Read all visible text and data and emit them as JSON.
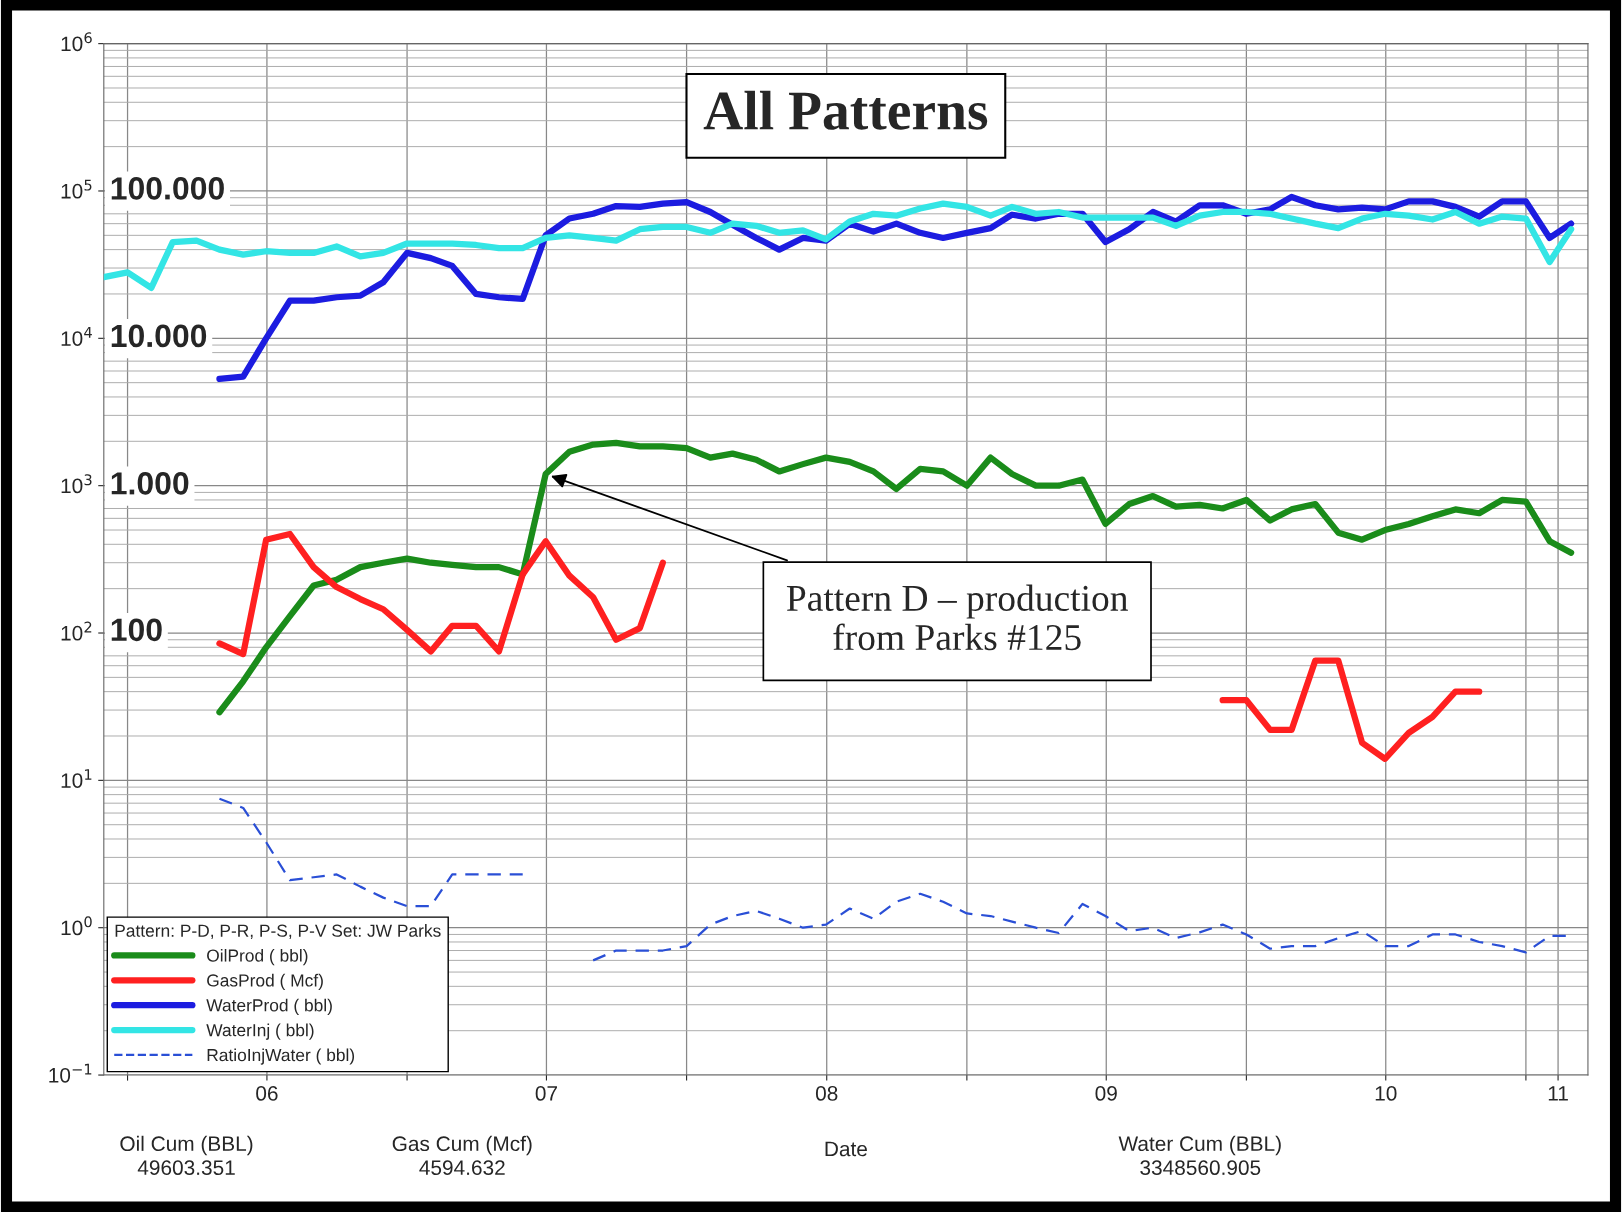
{
  "chart_data": {
    "type": "line",
    "title": "All Patterns",
    "xlabel": "Date",
    "legend_title": "Pattern: P-D, P-R, P-S, P-V Set: JW Parks",
    "x": [
      "2005-12",
      "2006-01",
      "2006-02",
      "2006-03",
      "2006-04",
      "2006-05",
      "2006-06",
      "2006-07",
      "2006-08",
      "2006-09",
      "2006-10",
      "2006-11",
      "2006-12",
      "2007-01",
      "2007-02",
      "2007-03",
      "2007-04",
      "2007-05",
      "2007-06",
      "2007-07",
      "2007-08",
      "2007-09",
      "2007-10",
      "2007-11",
      "2007-12",
      "2008-01",
      "2008-02",
      "2008-03",
      "2008-04",
      "2008-05",
      "2008-06",
      "2008-07",
      "2008-08",
      "2008-09",
      "2008-10",
      "2008-11",
      "2008-12",
      "2009-01",
      "2009-02",
      "2009-03",
      "2009-04",
      "2009-05",
      "2009-06",
      "2009-07",
      "2009-08",
      "2009-09",
      "2009-10",
      "2009-11",
      "2009-12",
      "2010-01",
      "2010-02",
      "2010-03",
      "2010-04",
      "2010-05",
      "2010-06",
      "2010-07",
      "2010-08",
      "2010-09",
      "2010-10",
      "2010-11",
      "2010-12",
      "2011-01",
      "2011-02",
      "2011-03"
    ],
    "series": [
      {
        "name": "OilProd ( bbl)",
        "color": "#1a8c1a",
        "line_style": "solid",
        "values": [
          null,
          null,
          null,
          null,
          null,
          29,
          47,
          80,
          130,
          210,
          230,
          280,
          300,
          320,
          300,
          290,
          280,
          280,
          250,
          1200,
          1700,
          1900,
          1950,
          1850,
          1850,
          1800,
          1550,
          1650,
          1500,
          1250,
          1400,
          1550,
          1450,
          1250,
          950,
          1300,
          1250,
          1000,
          1550,
          1200,
          1000,
          1000,
          1100,
          550,
          750,
          850,
          720,
          740,
          700,
          800,
          580,
          690,
          750,
          480,
          430,
          500,
          550,
          620,
          690,
          650,
          800,
          780,
          420,
          350
        ]
      },
      {
        "name": "GasProd ( Mcf)",
        "color": "#ff2020",
        "line_style": "solid",
        "values": [
          null,
          null,
          null,
          null,
          null,
          85,
          72,
          430,
          470,
          280,
          205,
          170,
          145,
          105,
          75,
          112,
          112,
          75,
          250,
          420,
          245,
          175,
          90,
          108,
          300,
          null,
          null,
          null,
          null,
          null,
          null,
          null,
          null,
          null,
          null,
          null,
          null,
          null,
          null,
          null,
          null,
          null,
          null,
          null,
          null,
          null,
          null,
          null,
          35,
          35,
          22,
          22,
          65,
          65,
          18,
          14,
          21,
          27,
          40,
          40,
          null,
          null,
          null,
          null
        ]
      },
      {
        "name": "WaterProd ( bbl)",
        "color": "#1c1ce0",
        "line_style": "solid",
        "values": [
          null,
          null,
          null,
          null,
          null,
          5300,
          5500,
          10000,
          18000,
          18000,
          19000,
          19500,
          24000,
          38000,
          35000,
          31000,
          20000,
          19000,
          18500,
          50000,
          65000,
          70000,
          79000,
          78000,
          82000,
          84000,
          72000,
          59000,
          48000,
          40000,
          48000,
          46000,
          60000,
          53000,
          60000,
          52000,
          48000,
          52000,
          56000,
          69000,
          65000,
          70000,
          70000,
          45000,
          55000,
          72000,
          62000,
          80000,
          80000,
          70000,
          75000,
          91000,
          80000,
          75000,
          77000,
          75000,
          85000,
          85000,
          78000,
          67000,
          85000,
          85000,
          48000,
          60000
        ]
      },
      {
        "name": "WaterInj ( bbl)",
        "color": "#33e5e5",
        "line_style": "solid",
        "values": [
          26000,
          28000,
          22000,
          45000,
          46000,
          40000,
          37000,
          39000,
          38000,
          38000,
          42000,
          36000,
          38000,
          44000,
          44000,
          44000,
          43000,
          41000,
          41000,
          48000,
          50000,
          48000,
          46000,
          55000,
          57000,
          57000,
          52000,
          60000,
          58000,
          52000,
          54000,
          47000,
          62000,
          70000,
          68000,
          76000,
          82000,
          78000,
          68000,
          78000,
          70000,
          72000,
          66000,
          66000,
          66000,
          66000,
          58000,
          68000,
          72000,
          72000,
          70000,
          65000,
          60000,
          56000,
          65000,
          70000,
          68000,
          64000,
          72000,
          60000,
          67000,
          65000,
          33000,
          55000
        ]
      },
      {
        "name": "RatioInjWater ( bbl)",
        "color": "#2a4fd6",
        "line_style": "dashed",
        "values": [
          null,
          null,
          null,
          null,
          null,
          7.5,
          6.5,
          3.8,
          2.1,
          2.2,
          2.3,
          1.9,
          1.6,
          1.4,
          1.4,
          2.3,
          2.3,
          2.3,
          2.3,
          null,
          null,
          0.6,
          0.7,
          0.7,
          0.7,
          0.75,
          1.05,
          1.2,
          1.3,
          1.15,
          1.0,
          1.05,
          1.35,
          1.15,
          1.5,
          1.7,
          1.5,
          1.25,
          1.2,
          1.1,
          1.0,
          0.92,
          1.45,
          1.2,
          0.95,
          1.0,
          0.85,
          0.93,
          1.05,
          0.9,
          0.72,
          0.75,
          0.75,
          0.85,
          0.95,
          0.75,
          0.75,
          0.9,
          0.9,
          0.8,
          0.75,
          0.68,
          0.88,
          0.88
        ]
      }
    ],
    "log": "y",
    "ylim": [
      0.1,
      1000000
    ],
    "yticks": [
      {
        "value": 0.1,
        "label": "10$^{−1}$"
      },
      {
        "value": 1,
        "label": "10$^{0}$"
      },
      {
        "value": 10,
        "label": "10$^{1}$"
      },
      {
        "value": 100,
        "label": "10$^{2}$"
      },
      {
        "value": 1000,
        "label": "10$^{3}$"
      },
      {
        "value": 10000,
        "label": "10$^{4}$"
      },
      {
        "value": 100000,
        "label": "10$^{5}$"
      },
      {
        "value": 1000000,
        "label": "10$^{6}$"
      }
    ],
    "xlim": [
      "2005-12-01",
      "2011-03-23"
    ],
    "xticks": [
      {
        "value": "2006-01-01",
        "label": null
      },
      {
        "value": "2006-07-02",
        "label": "06"
      },
      {
        "value": "2007-01-01",
        "label": null
      },
      {
        "value": "2007-07-02",
        "label": "07"
      },
      {
        "value": "2008-01-01",
        "label": null
      },
      {
        "value": "2008-07-02",
        "label": "08"
      },
      {
        "value": "2009-01-01",
        "label": null
      },
      {
        "value": "2009-07-02",
        "label": "09"
      },
      {
        "value": "2010-01-01",
        "label": null
      },
      {
        "value": "2010-07-02",
        "label": "10"
      },
      {
        "value": "2011-01-01",
        "label": null
      },
      {
        "value": "2011-02-12",
        "label": "11"
      }
    ],
    "grid": true,
    "legend": "bottom left",
    "marker": "none",
    "annotations": [
      "100.000",
      "10.000",
      "1.000",
      "100",
      {
        "text": "Pattern D – production\nfrom Parks #125",
        "x": "2007-07",
        "y": 1200
      },
      "Oil Cum (BBL)\n49603.351",
      "Gas Cum (Mcf)\n4594.632",
      "Water Cum (BBL)\n3348560.905"
    ]
  }
}
